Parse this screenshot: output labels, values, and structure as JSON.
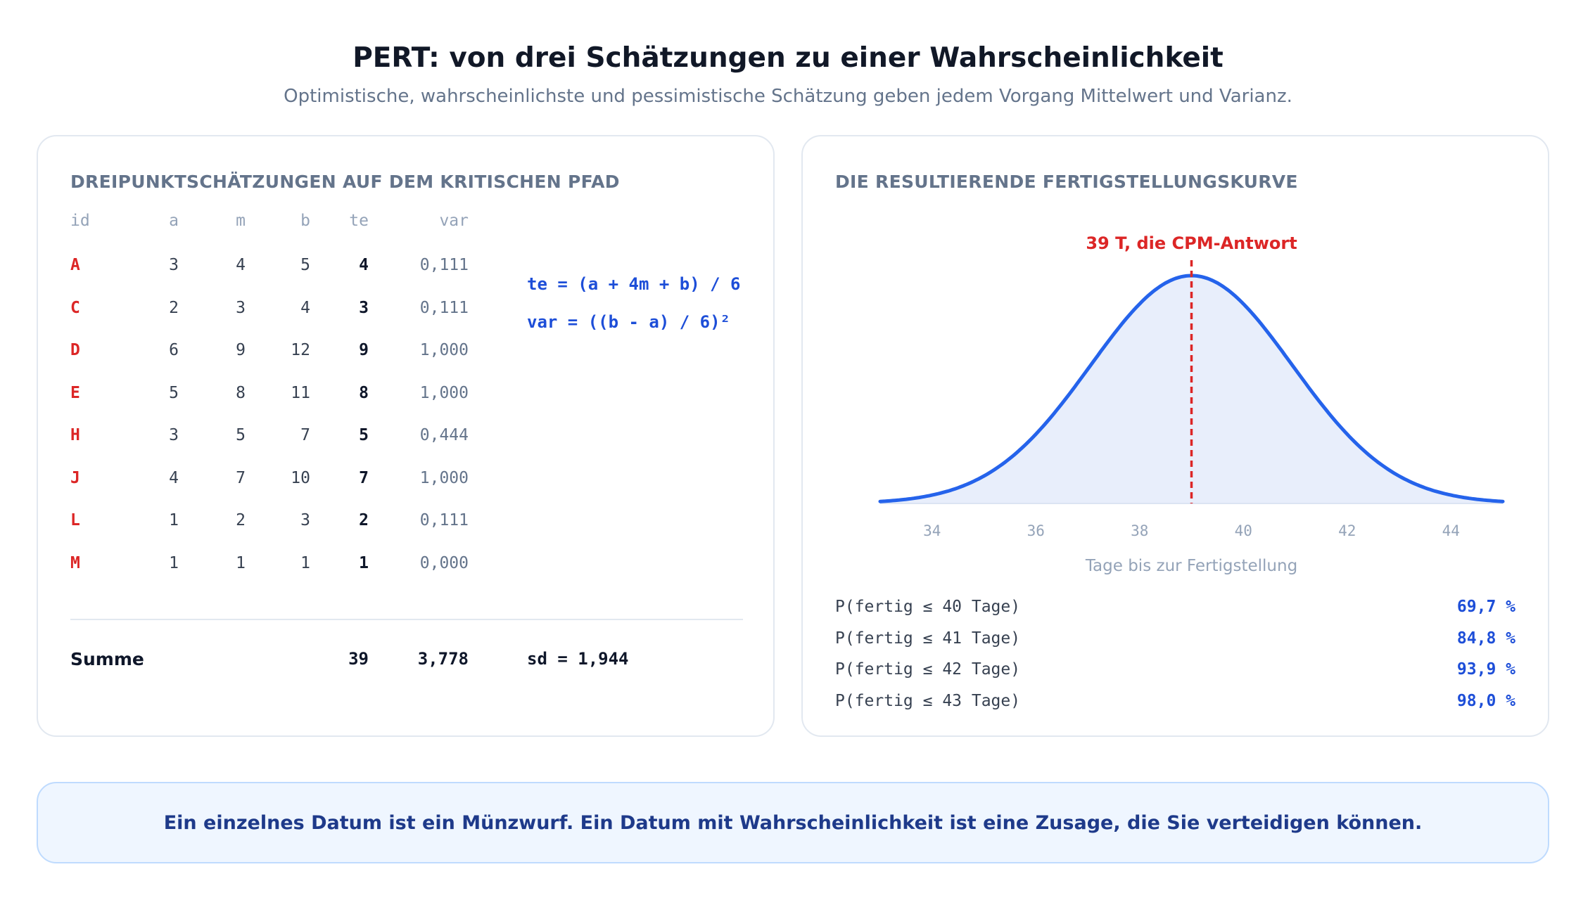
{
  "header": {
    "title": "PERT: von drei Schätzungen zu einer Wahrscheinlichkeit",
    "subtitle": "Optimistische, wahrscheinlichste und pessimistische Schätzung geben jedem Vorgang Mittelwert und Varianz."
  },
  "estimates": {
    "heading": "DREIPUNKTSCHÄTZUNGEN AUF DEM KRITISCHEN PFAD",
    "columns": [
      "id",
      "a",
      "m",
      "b",
      "te",
      "var"
    ],
    "rows": [
      {
        "id": "A",
        "a": "3",
        "m": "4",
        "b": "5",
        "te": "4",
        "var": "0,111"
      },
      {
        "id": "C",
        "a": "2",
        "m": "3",
        "b": "4",
        "te": "3",
        "var": "0,111"
      },
      {
        "id": "D",
        "a": "6",
        "m": "9",
        "b": "12",
        "te": "9",
        "var": "1,000"
      },
      {
        "id": "E",
        "a": "5",
        "m": "8",
        "b": "11",
        "te": "8",
        "var": "1,000"
      },
      {
        "id": "H",
        "a": "3",
        "m": "5",
        "b": "7",
        "te": "5",
        "var": "0,444"
      },
      {
        "id": "J",
        "a": "4",
        "m": "7",
        "b": "10",
        "te": "7",
        "var": "1,000"
      },
      {
        "id": "L",
        "a": "1",
        "m": "2",
        "b": "3",
        "te": "2",
        "var": "0,111"
      },
      {
        "id": "M",
        "a": "1",
        "m": "1",
        "b": "1",
        "te": "1",
        "var": "0,000"
      }
    ],
    "formulas": [
      "te = (a + 4m + b) / 6",
      "var = ((b - a) / 6)²"
    ],
    "sum": {
      "label": "Summe",
      "te": "39",
      "var": "3,778",
      "sd": "sd = 1,944"
    }
  },
  "curve": {
    "heading": "DIE RESULTIERENDE FERTIGSTELLUNGSKURVE",
    "mean": 39,
    "sd": 1.944,
    "marker_label": "39 T, die CPM-Antwort",
    "xlabel": "Tage bis zur Fertigstellung",
    "x_range": [
      33,
      45
    ],
    "ticks": [
      "34",
      "36",
      "38",
      "40",
      "42",
      "44"
    ],
    "probabilities": [
      {
        "label": "P(fertig ≤ 40 Tage)",
        "value": "69,7 %"
      },
      {
        "label": "P(fertig ≤ 41 Tage)",
        "value": "84,8 %"
      },
      {
        "label": "P(fertig ≤ 42 Tage)",
        "value": "93,9 %"
      },
      {
        "label": "P(fertig ≤ 43 Tage)",
        "value": "98,0 %"
      }
    ],
    "colors": {
      "curve": "#2563eb",
      "fill": "#e8eefb",
      "marker": "#dc2626"
    }
  },
  "callout": {
    "text": "Ein einzelnes Datum ist ein Münzwurf. Ein Datum mit Wahrscheinlichkeit ist eine Zusage, die Sie verteidigen können."
  }
}
